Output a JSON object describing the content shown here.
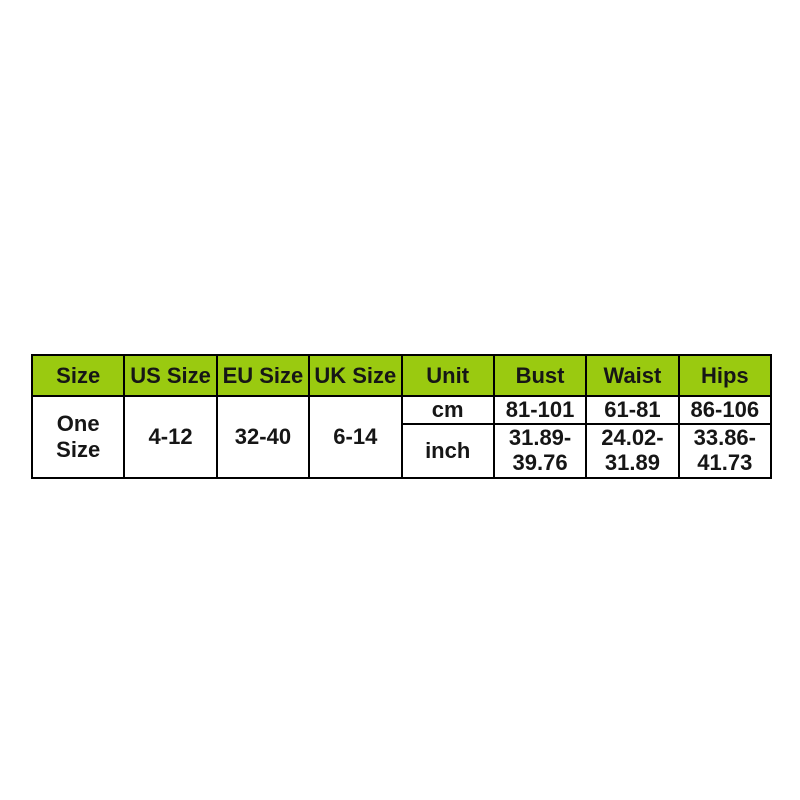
{
  "page": {
    "background_color": "#ffffff"
  },
  "table": {
    "accent_color": "#9aca10",
    "border_color": "#000000",
    "text_color": "#161616",
    "headers": [
      "Size",
      "US Size",
      "EU Size",
      "UK Size",
      "Unit",
      "Bust",
      "Waist",
      "Hips"
    ],
    "size_row": {
      "size": "One Size",
      "us": "4-12",
      "eu": "32-40",
      "uk": "6-14"
    },
    "unit_rows": [
      {
        "unit": "cm",
        "bust": "81-101",
        "waist": "61-81",
        "hips": "86-106"
      },
      {
        "unit": "inch",
        "bust": "31.89-\n39.76",
        "waist": "24.02-\n31.89",
        "hips": "33.86-\n41.73"
      }
    ]
  },
  "chart_data": {
    "type": "table",
    "title": "",
    "columns": [
      "Size",
      "US Size",
      "EU Size",
      "UK Size",
      "Unit",
      "Bust",
      "Waist",
      "Hips"
    ],
    "rows": [
      [
        "One Size",
        "4-12",
        "32-40",
        "6-14",
        "cm",
        "81-101",
        "61-81",
        "86-106"
      ],
      [
        "One Size",
        "4-12",
        "32-40",
        "6-14",
        "inch",
        "31.89-39.76",
        "24.02-31.89",
        "33.86-41.73"
      ]
    ]
  }
}
